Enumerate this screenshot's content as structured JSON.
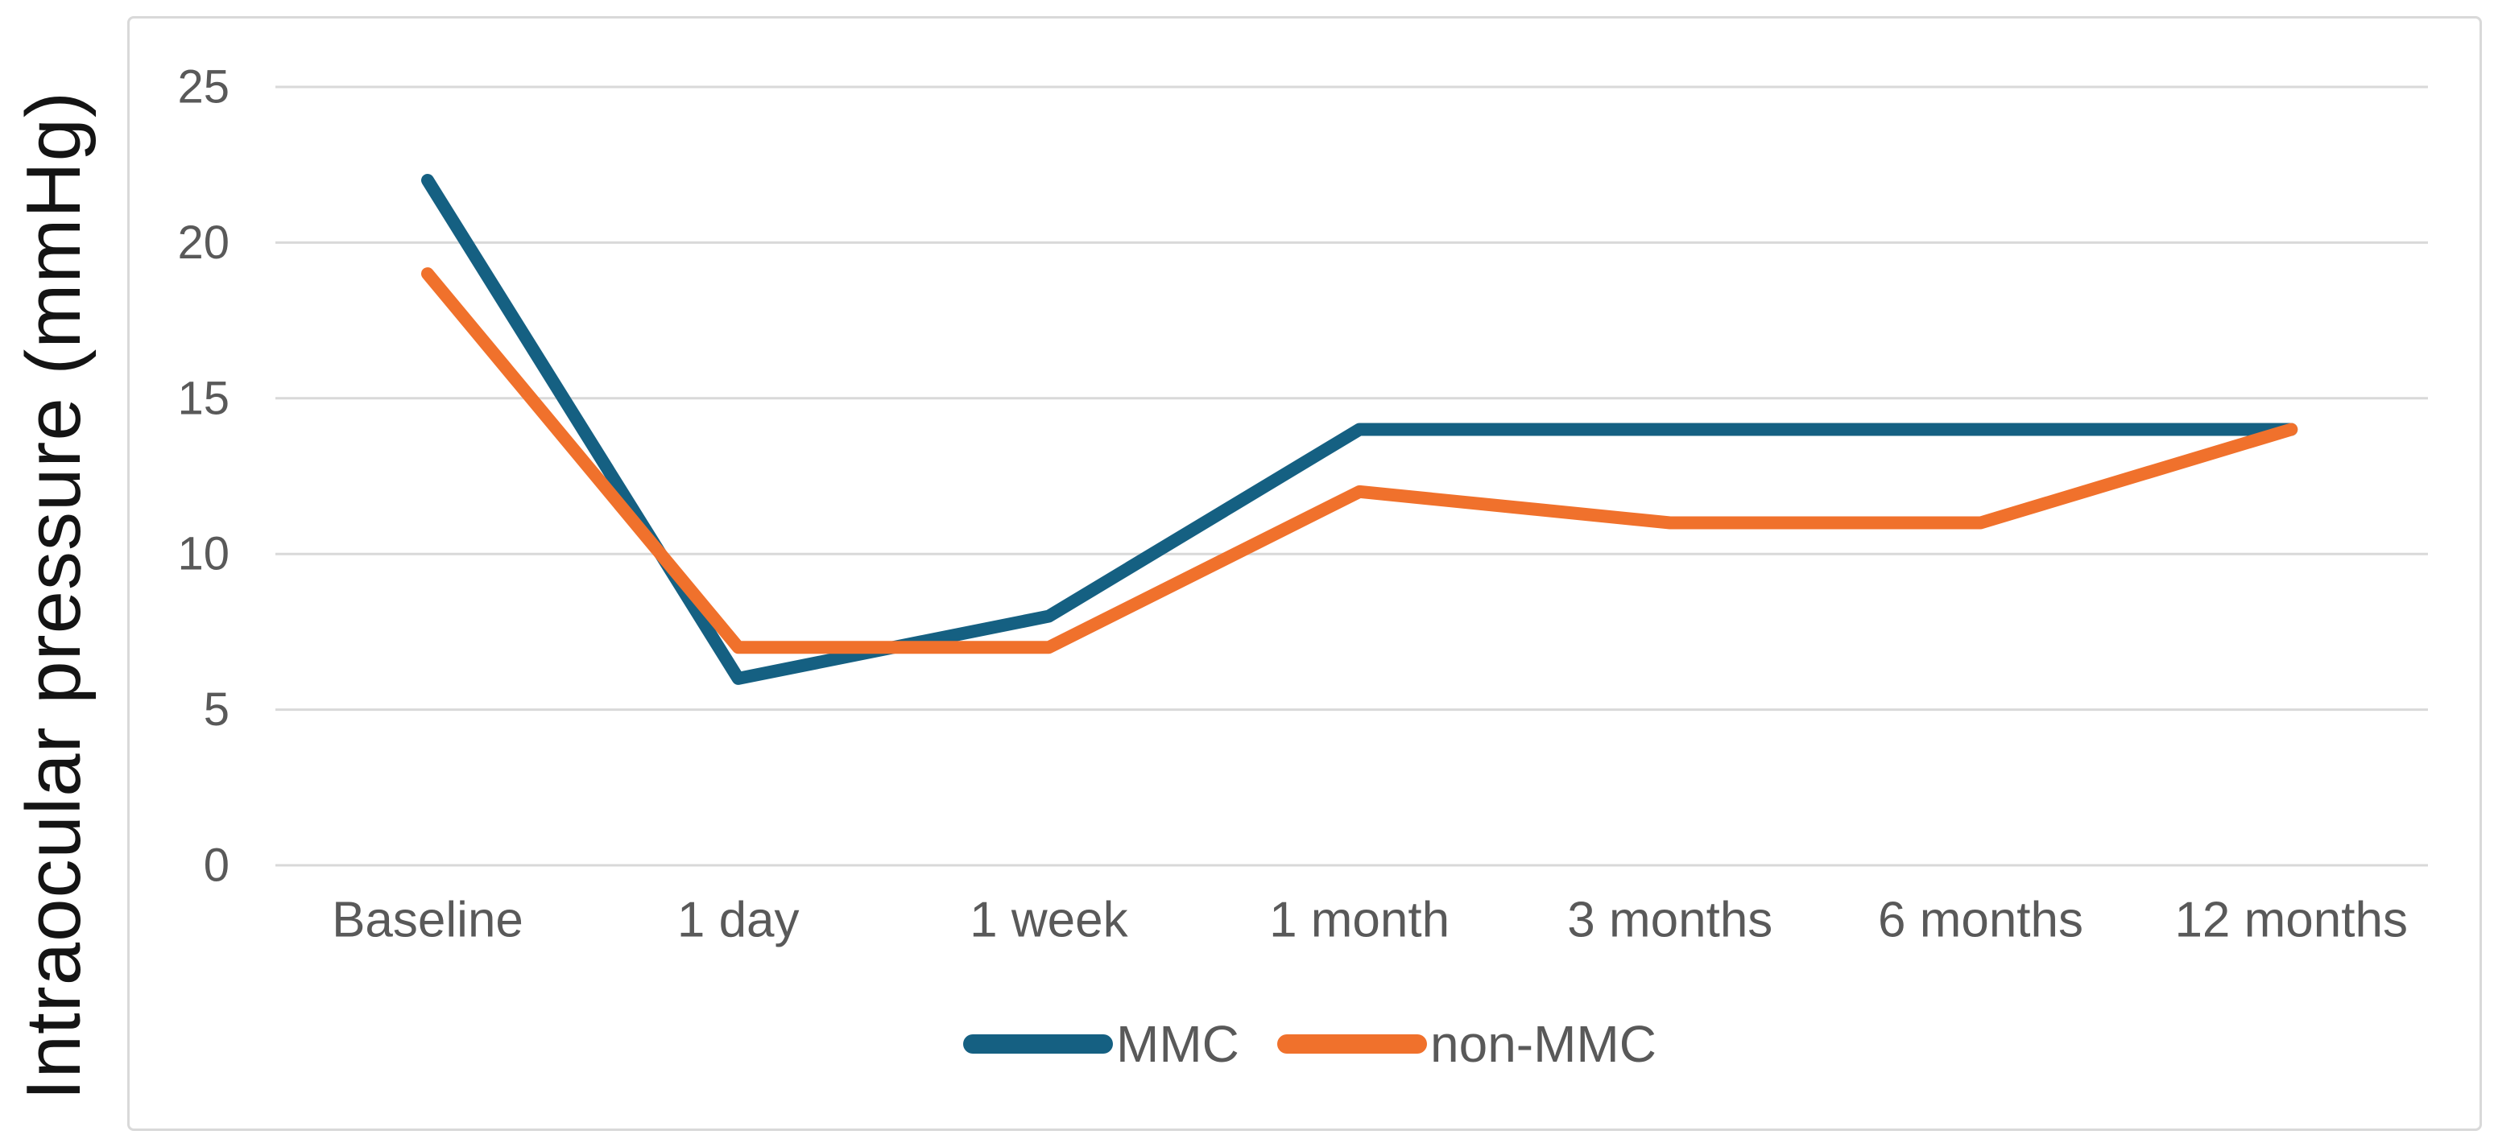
{
  "figure": {
    "background": "#ffffff",
    "border_color": "#d9d9d9"
  },
  "chart_data": {
    "type": "line",
    "title": "",
    "xlabel": "",
    "ylabel": "Intraocular pressure (mmHg)",
    "categories": [
      "Baseline",
      "1 day",
      "1 week",
      "1 month",
      "3 months",
      "6 months",
      "12 months"
    ],
    "series": [
      {
        "name": "MMC",
        "color": "#156082",
        "values": [
          22,
          6,
          8,
          14,
          14,
          14,
          14
        ]
      },
      {
        "name": "non-MMC",
        "color": "#F0712C",
        "values": [
          19,
          7,
          7,
          12,
          11,
          11,
          14
        ]
      }
    ],
    "yticks": [
      0,
      5,
      10,
      15,
      20,
      25
    ],
    "ylim": [
      0,
      25
    ],
    "grid": true,
    "grid_color": "#d9d9d9",
    "tick_color": "#595959",
    "legend_position": "bottom-center",
    "legend": [
      "MMC",
      "non-MMC"
    ]
  }
}
